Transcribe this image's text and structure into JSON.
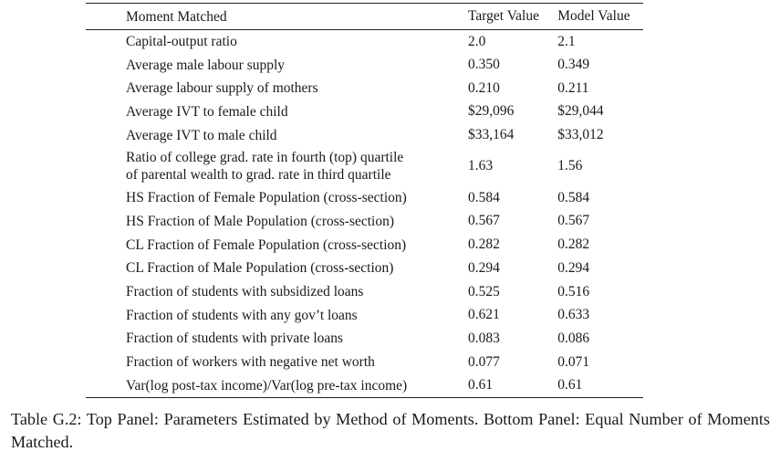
{
  "table": {
    "headers": [
      "Moment Matched",
      "Target Value",
      "Model Value"
    ],
    "rows": [
      {
        "moment": "Capital-output ratio",
        "target": "2.0",
        "model": "2.1"
      },
      {
        "moment": "Average male labour supply",
        "target": "0.350",
        "model": "0.349"
      },
      {
        "moment": "Average labour supply of mothers",
        "target": "0.210",
        "model": "0.211"
      },
      {
        "moment": "Average IVT to female child",
        "target": "$29,096",
        "model": "$29,044"
      },
      {
        "moment": "Average IVT to male child",
        "target": "$33,164",
        "model": "$33,012"
      },
      {
        "moment_line1": "Ratio of college grad. rate in fourth (top) quartile",
        "moment_line2": "of parental wealth to grad. rate in third quartile",
        "target": "1.63",
        "model": "1.56"
      },
      {
        "moment": "HS Fraction of Female Population (cross-section)",
        "target": "0.584",
        "model": "0.584"
      },
      {
        "moment": "HS Fraction of Male Population (cross-section)",
        "target": "0.567",
        "model": "0.567"
      },
      {
        "moment": "CL Fraction of Female Population (cross-section)",
        "target": "0.282",
        "model": "0.282"
      },
      {
        "moment": "CL Fraction of Male Population (cross-section)",
        "target": "0.294",
        "model": "0.294"
      },
      {
        "moment": "Fraction of students with subsidized loans",
        "target": "0.525",
        "model": "0.516"
      },
      {
        "moment": "Fraction of students with any gov’t loans",
        "target": "0.621",
        "model": "0.633"
      },
      {
        "moment": "Fraction of students with private loans",
        "target": "0.083",
        "model": "0.086"
      },
      {
        "moment": "Fraction of workers with negative net worth",
        "target": "0.077",
        "model": "0.071"
      },
      {
        "moment": "Var(log post-tax income)/Var(log pre-tax income)",
        "target": "0.61",
        "model": "0.61"
      }
    ]
  },
  "caption": "Table G.2: Top Panel: Parameters Estimated by Method of Moments. Bottom Panel: Equal Number of Moments Matched."
}
